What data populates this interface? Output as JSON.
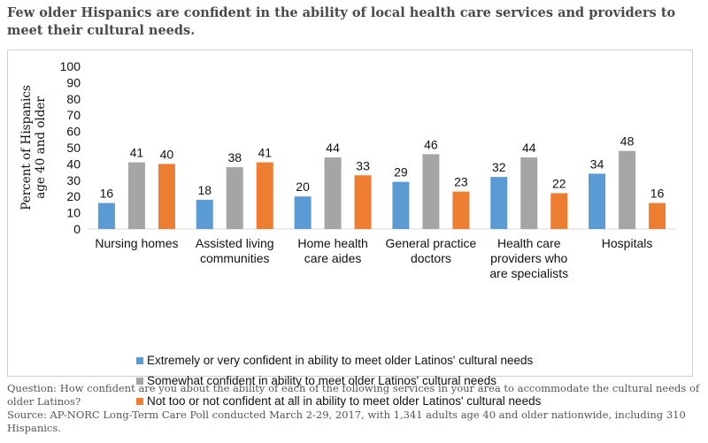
{
  "title": "Few older Hispanics are confident in the ability of local health care services and providers to meet their cultural needs.",
  "question": "Question: How confident are you about the ability of each of the following services in your area to accommodate the cultural needs of older Latinos?",
  "source": "Source: AP-NORC Long-Term Care Poll conducted March 2-29, 2017, with 1,341 adults age 40 and older nationwide, including 310 Hispanics.",
  "chart_data": {
    "type": "bar",
    "title": "Few older Hispanics are confident in the ability of local health care services and providers to meet their cultural needs.",
    "xlabel": "",
    "ylabel": "Percent of Hispanics age 40 and older",
    "ylabel_lines": [
      "Percent of Hispanics",
      "age 40 and older"
    ],
    "ylim": [
      0,
      100
    ],
    "yticks": [
      0,
      10,
      20,
      30,
      40,
      50,
      60,
      70,
      80,
      90,
      100
    ],
    "grid": false,
    "legend_position": "bottom",
    "categories": [
      [
        "Nursing homes"
      ],
      [
        "Assisted living",
        "communities"
      ],
      [
        "Home health",
        "care aides"
      ],
      [
        "General practice",
        "doctors"
      ],
      [
        "Health care",
        "providers who",
        "are specialists"
      ],
      [
        "Hospitals"
      ]
    ],
    "series": [
      {
        "name": "Extremely or very confident in ability to meet older Latinos' cultural needs",
        "color": "#5b9bd5",
        "values": [
          16,
          18,
          20,
          29,
          32,
          34
        ]
      },
      {
        "name": "Somewhat confident in ability to meet older Latinos' cultural needs",
        "color": "#a5a5a5",
        "values": [
          41,
          38,
          44,
          46,
          44,
          48
        ]
      },
      {
        "name": "Not too or not confident at all in ability to meet older Latinos' cultural needs",
        "color": "#ed7d31",
        "values": [
          40,
          41,
          33,
          23,
          22,
          16
        ]
      }
    ]
  }
}
